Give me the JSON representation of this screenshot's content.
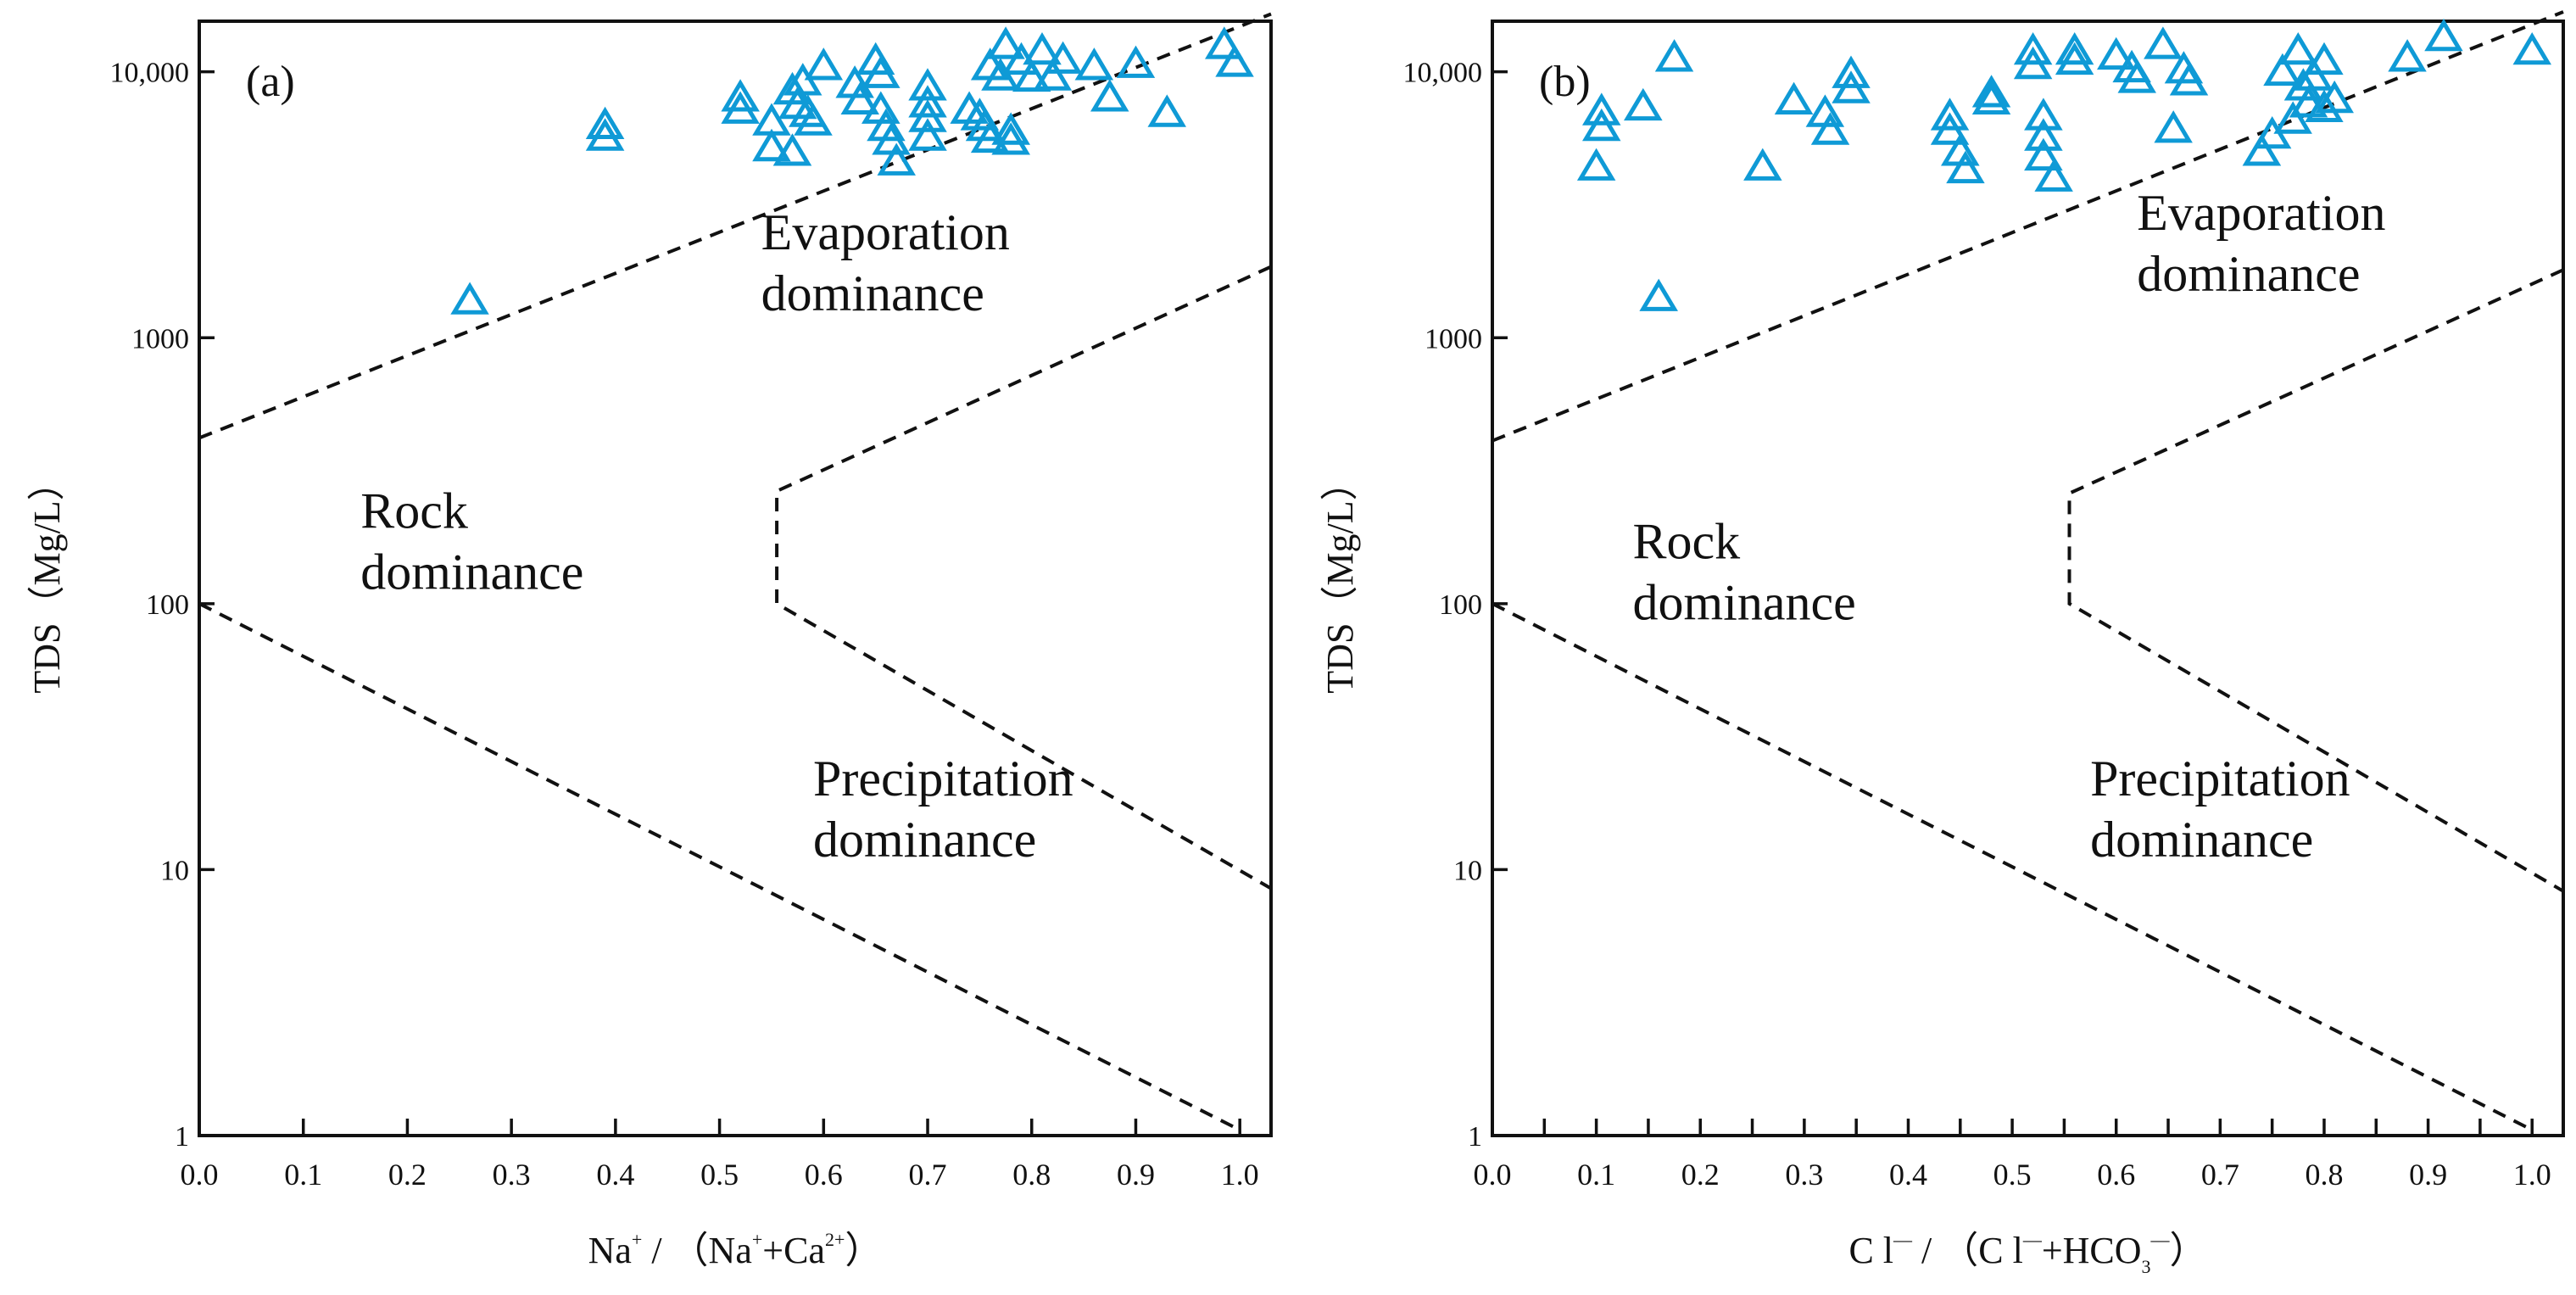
{
  "chart_data": [
    {
      "type": "scatter",
      "panel_label": "(a)",
      "xlabel_parts": [
        {
          "text": "Na",
          "style": "normal"
        },
        {
          "text": "+",
          "style": "sup"
        },
        {
          "text": " / （Na",
          "style": "normal"
        },
        {
          "text": "+",
          "style": "sup"
        },
        {
          "text": "+Ca",
          "style": "normal"
        },
        {
          "text": "2+",
          "style": "sup"
        },
        {
          "text": "）",
          "style": "normal"
        }
      ],
      "ylabel": "TDS（Mg/L）",
      "xscale": "linear",
      "yscale": "log",
      "xlim": [
        0.0,
        1.03
      ],
      "ylim": [
        1,
        15500
      ],
      "x_ticks": [
        0.0,
        0.1,
        0.2,
        0.3,
        0.4,
        0.5,
        0.6,
        0.7,
        0.8,
        0.9,
        1.0
      ],
      "x_tick_labels": [
        "0.0",
        "0.1",
        "0.2",
        "0.3",
        "0.4",
        "0.5",
        "0.6",
        "0.7",
        "0.8",
        "0.9",
        "1.0"
      ],
      "y_ticks": [
        1,
        10,
        100,
        1000,
        10000
      ],
      "y_tick_labels": [
        "1",
        "10",
        "100",
        "1000",
        "10,000"
      ],
      "marker": "triangle-open",
      "marker_color": "#0f9ad6",
      "regions": [
        {
          "lines": [
            "Evaporation",
            "dominance"
          ],
          "x": 0.54,
          "y": 2150
        },
        {
          "lines": [
            "Rock",
            "dominance"
          ],
          "x": 0.155,
          "y": 193
        },
        {
          "lines": [
            "Precipitation",
            "dominance"
          ],
          "x": 0.59,
          "y": 19
        }
      ],
      "boundaries": [
        {
          "name": "upper-boundary",
          "points": [
            [
              0.0,
              420
            ],
            [
              1.03,
              16500
            ]
          ]
        },
        {
          "name": "lower-boundary",
          "points": [
            [
              0.0,
              100
            ],
            [
              1.0,
              1.05
            ]
          ]
        },
        {
          "name": "middle-boundary",
          "points": [
            [
              1.03,
              1850
            ],
            [
              0.555,
              265
            ],
            [
              0.555,
              100
            ],
            [
              1.03,
              8.5
            ]
          ]
        }
      ],
      "points": [
        [
          0.26,
          1380
        ],
        [
          0.39,
          6300
        ],
        [
          0.39,
          5700
        ],
        [
          0.52,
          8000
        ],
        [
          0.52,
          7200
        ],
        [
          0.55,
          6500
        ],
        [
          0.55,
          5200
        ],
        [
          0.57,
          5000
        ],
        [
          0.57,
          8500
        ],
        [
          0.575,
          7500
        ],
        [
          0.58,
          9200
        ],
        [
          0.585,
          7000
        ],
        [
          0.59,
          6500
        ],
        [
          0.6,
          10500
        ],
        [
          0.63,
          9000
        ],
        [
          0.635,
          7800
        ],
        [
          0.65,
          11000
        ],
        [
          0.655,
          9800
        ],
        [
          0.655,
          7200
        ],
        [
          0.66,
          6200
        ],
        [
          0.665,
          5500
        ],
        [
          0.67,
          4600
        ],
        [
          0.7,
          8800
        ],
        [
          0.7,
          7600
        ],
        [
          0.7,
          6700
        ],
        [
          0.7,
          5700
        ],
        [
          0.74,
          7200
        ],
        [
          0.75,
          6800
        ],
        [
          0.755,
          6200
        ],
        [
          0.76,
          5600
        ],
        [
          0.76,
          10500
        ],
        [
          0.77,
          9600
        ],
        [
          0.775,
          12600
        ],
        [
          0.78,
          6000
        ],
        [
          0.78,
          5500
        ],
        [
          0.79,
          11000
        ],
        [
          0.8,
          9500
        ],
        [
          0.81,
          12000
        ],
        [
          0.82,
          9600
        ],
        [
          0.83,
          11100
        ],
        [
          0.86,
          10500
        ],
        [
          0.875,
          8000
        ],
        [
          0.9,
          10700
        ],
        [
          0.93,
          7000
        ],
        [
          0.985,
          12600
        ],
        [
          0.995,
          10800
        ]
      ]
    },
    {
      "type": "scatter",
      "panel_label": "(b)",
      "xlabel_parts": [
        {
          "text": "C l",
          "style": "normal"
        },
        {
          "text": "—",
          "style": "sup"
        },
        {
          "text": " / （C l",
          "style": "normal"
        },
        {
          "text": "—",
          "style": "sup"
        },
        {
          "text": "+HCO",
          "style": "normal"
        },
        {
          "text": "3",
          "style": "sub"
        },
        {
          "text": "—",
          "style": "sup"
        },
        {
          "text": "）",
          "style": "normal"
        }
      ],
      "ylabel": "TDS（Mg/L）",
      "xscale": "linear",
      "yscale": "log",
      "xlim": [
        0.0,
        1.03
      ],
      "ylim": [
        1,
        15500
      ],
      "x_ticks": [
        0.0,
        0.1,
        0.2,
        0.3,
        0.4,
        0.5,
        0.6,
        0.7,
        0.8,
        0.9,
        1.0
      ],
      "x_tick_labels": [
        "0.0",
        "0.1",
        "0.2",
        "0.3",
        "0.4",
        "0.5",
        "0.6",
        "0.7",
        "0.8",
        "0.9",
        "1.0"
      ],
      "minor_x_ticks": [
        0.05,
        0.15,
        0.25,
        0.35,
        0.45,
        0.55,
        0.65,
        0.75,
        0.85,
        0.95
      ],
      "y_ticks": [
        1,
        10,
        100,
        1000,
        10000
      ],
      "y_tick_labels": [
        "1",
        "10",
        "100",
        "1000",
        "10,000"
      ],
      "marker": "triangle-open",
      "marker_color": "#0f9ad6",
      "regions": [
        {
          "lines": [
            "Evaporation",
            "dominance"
          ],
          "x": 0.62,
          "y": 2550
        },
        {
          "lines": [
            "Rock",
            "dominance"
          ],
          "x": 0.135,
          "y": 148
        },
        {
          "lines": [
            "Precipitation",
            "dominance"
          ],
          "x": 0.575,
          "y": 19
        }
      ],
      "boundaries": [
        {
          "name": "upper-boundary",
          "points": [
            [
              0.0,
              410
            ],
            [
              1.03,
              16800
            ]
          ]
        },
        {
          "name": "lower-boundary",
          "points": [
            [
              0.0,
              100
            ],
            [
              1.0,
              1.05
            ]
          ]
        },
        {
          "name": "middle-boundary",
          "points": [
            [
              1.03,
              1800
            ],
            [
              0.555,
              260
            ],
            [
              0.555,
              100
            ],
            [
              1.03,
              8.3
            ]
          ]
        }
      ],
      "points": [
        [
          0.1,
          4400
        ],
        [
          0.105,
          7100
        ],
        [
          0.105,
          6200
        ],
        [
          0.145,
          7400
        ],
        [
          0.16,
          1420
        ],
        [
          0.175,
          11300
        ],
        [
          0.26,
          4400
        ],
        [
          0.29,
          7800
        ],
        [
          0.32,
          7000
        ],
        [
          0.325,
          6000
        ],
        [
          0.345,
          9800
        ],
        [
          0.345,
          8600
        ],
        [
          0.44,
          6800
        ],
        [
          0.44,
          6000
        ],
        [
          0.45,
          5000
        ],
        [
          0.455,
          4300
        ],
        [
          0.48,
          8300
        ],
        [
          0.48,
          7800
        ],
        [
          0.52,
          12000
        ],
        [
          0.52,
          10600
        ],
        [
          0.53,
          6800
        ],
        [
          0.53,
          5700
        ],
        [
          0.53,
          4800
        ],
        [
          0.54,
          4000
        ],
        [
          0.56,
          12000
        ],
        [
          0.56,
          11000
        ],
        [
          0.6,
          11500
        ],
        [
          0.615,
          10300
        ],
        [
          0.62,
          9400
        ],
        [
          0.645,
          12600
        ],
        [
          0.655,
          6100
        ],
        [
          0.665,
          10200
        ],
        [
          0.67,
          9200
        ],
        [
          0.74,
          5000
        ],
        [
          0.75,
          5800
        ],
        [
          0.76,
          10000
        ],
        [
          0.77,
          6600
        ],
        [
          0.775,
          12000
        ],
        [
          0.78,
          8800
        ],
        [
          0.785,
          7600
        ],
        [
          0.79,
          9600
        ],
        [
          0.8,
          11000
        ],
        [
          0.8,
          7300
        ],
        [
          0.81,
          7900
        ],
        [
          0.88,
          11300
        ],
        [
          0.915,
          13500
        ],
        [
          1.0,
          12000
        ]
      ]
    }
  ]
}
